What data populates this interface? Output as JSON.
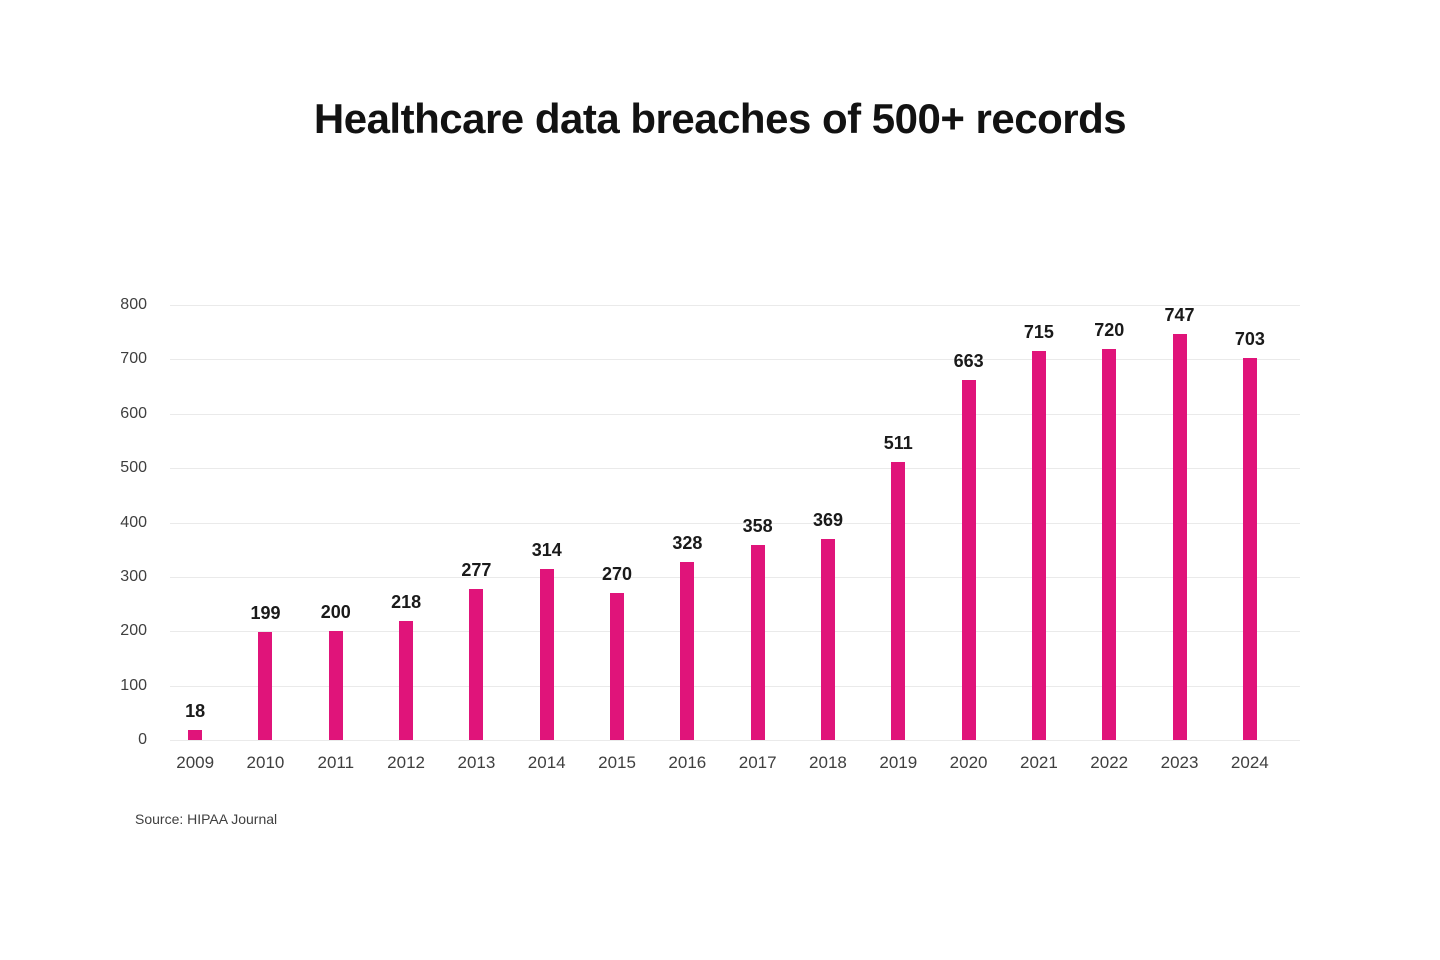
{
  "source": "Source: HIPAA Journal",
  "colors": {
    "bar": "#E0147A",
    "gridline": "#EAEAEA",
    "axis_text": "#3F3F3F",
    "value_label_text": "#1A1A1A",
    "title_text": "#121212",
    "background": "#FFFFFF"
  },
  "chart_data": {
    "type": "bar",
    "title": "Healthcare data breaches of 500+ records",
    "categories": [
      "2009",
      "2010",
      "2011",
      "2012",
      "2013",
      "2014",
      "2015",
      "2016",
      "2017",
      "2018",
      "2019",
      "2020",
      "2021",
      "2022",
      "2023",
      "2024"
    ],
    "values": [
      18,
      199,
      200,
      218,
      277,
      314,
      270,
      328,
      358,
      369,
      511,
      663,
      715,
      720,
      747,
      703
    ],
    "xlabel": "",
    "ylabel": "",
    "ylim": [
      0,
      800
    ],
    "ytick_step": 100,
    "yticks": [
      0,
      100,
      200,
      300,
      400,
      500,
      600,
      700,
      800
    ],
    "grid": true,
    "legend": false,
    "bar_value_labels": true,
    "annotations": [
      "Source: HIPAA Journal"
    ]
  }
}
